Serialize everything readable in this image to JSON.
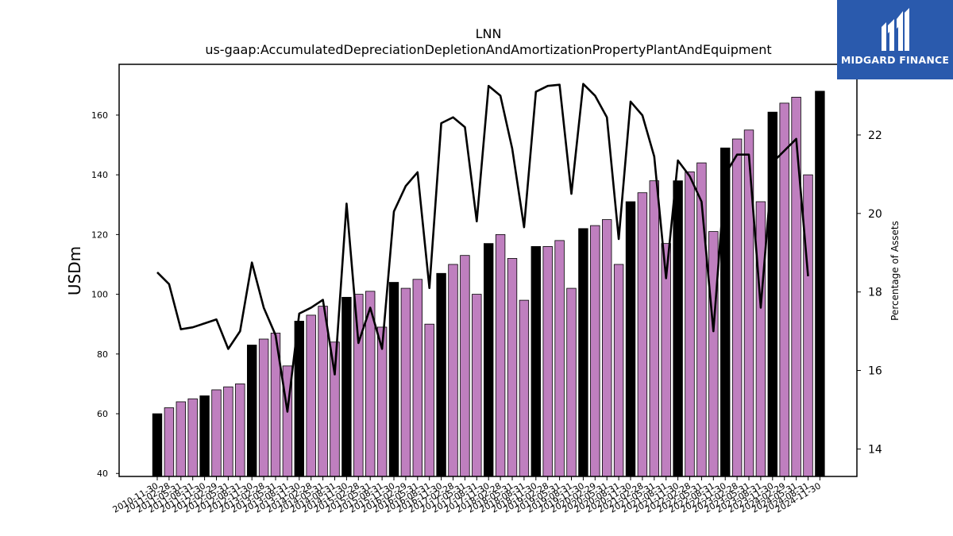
{
  "brand": {
    "name": "MIDGARD FINANCE",
    "color": "#2a5aad"
  },
  "chart_data": {
    "type": "bar",
    "title": "LNN",
    "subtitle": "us-gaap:AccumulatedDepreciationDepletionAndAmortizationPropertyPlantAndEquipment",
    "ylabel": "USDm",
    "y2label": "Percentage of Assets",
    "ylim": [
      39,
      177
    ],
    "y2lim": [
      13.3,
      23.8
    ],
    "yticks": [
      40,
      60,
      80,
      100,
      120,
      140,
      160
    ],
    "y2ticks": [
      14,
      16,
      18,
      20,
      22
    ],
    "colors": {
      "fiscal_year_end_bar": "#000000",
      "quarter_bar": "#bf7fbf",
      "ratio_line": "#000000"
    },
    "categories": [
      "2010-11-30",
      "2011-02-28",
      "2011-05-31",
      "2011-08-31",
      "2011-11-30",
      "2012-02-29",
      "2012-05-31",
      "2012-08-31",
      "2012-11-30",
      "2013-02-28",
      "2013-05-31",
      "2013-08-31",
      "2013-11-30",
      "2014-02-28",
      "2014-05-31",
      "2014-08-31",
      "2014-11-30",
      "2015-02-28",
      "2015-05-31",
      "2015-08-31",
      "2015-11-30",
      "2016-02-29",
      "2016-05-31",
      "2016-08-31",
      "2016-11-30",
      "2017-02-28",
      "2017-05-31",
      "2017-08-31",
      "2017-11-30",
      "2018-02-28",
      "2018-05-31",
      "2018-08-31",
      "2018-11-30",
      "2019-02-28",
      "2019-05-31",
      "2019-08-31",
      "2019-11-30",
      "2020-02-29",
      "2020-05-31",
      "2020-08-31",
      "2020-11-30",
      "2021-02-28",
      "2021-05-31",
      "2021-08-31",
      "2021-11-30",
      "2022-02-28",
      "2022-05-31",
      "2022-08-31",
      "2022-11-30",
      "2023-02-28",
      "2023-05-31",
      "2023-08-31",
      "2023-11-30",
      "2024-02-29",
      "2024-05-31",
      "2024-08-31",
      "2024-11-30"
    ],
    "series": [
      {
        "values": [
          60,
          62,
          64,
          65,
          66,
          68,
          69,
          70,
          83,
          85,
          87,
          76,
          91,
          93,
          96,
          84,
          99,
          100,
          101,
          89,
          104,
          102,
          105,
          90,
          107,
          110,
          113,
          100,
          117,
          120,
          112,
          98,
          116,
          116,
          118,
          102,
          122,
          123,
          125,
          110,
          131,
          134,
          138,
          117,
          138,
          141,
          144,
          121,
          149,
          152,
          155,
          131,
          161,
          164,
          166,
          140,
          168
        ],
        "fiscal_year_end": [
          true,
          false,
          false,
          false,
          true,
          false,
          false,
          false,
          true,
          false,
          false,
          false,
          true,
          false,
          false,
          false,
          true,
          false,
          false,
          false,
          true,
          false,
          false,
          false,
          true,
          false,
          false,
          false,
          true,
          false,
          false,
          false,
          true,
          false,
          false,
          false,
          true,
          false,
          false,
          false,
          true,
          false,
          false,
          false,
          true,
          false,
          false,
          false,
          true,
          false,
          false,
          false,
          true,
          false,
          false,
          false,
          true
        ]
      },
      {
        "axis": "right",
        "values": [
          18.5,
          18.2,
          17.05,
          17.1,
          17.2,
          17.3,
          16.55,
          17.0,
          18.75,
          17.6,
          16.9,
          14.95,
          17.45,
          17.6,
          17.8,
          15.9,
          20.25,
          16.7,
          17.6,
          16.55,
          20.05,
          20.7,
          21.05,
          18.1,
          22.3,
          22.45,
          22.2,
          19.8,
          23.25,
          23.0,
          21.65,
          19.65,
          23.1,
          23.25,
          23.28,
          20.5,
          23.3,
          23.0,
          22.45,
          19.35,
          22.85,
          22.5,
          21.45,
          18.35,
          21.35,
          20.95,
          20.3,
          17.0,
          21.0,
          21.5,
          21.5,
          17.6,
          21.3,
          21.6,
          21.9,
          18.4,
          null
        ]
      }
    ]
  }
}
